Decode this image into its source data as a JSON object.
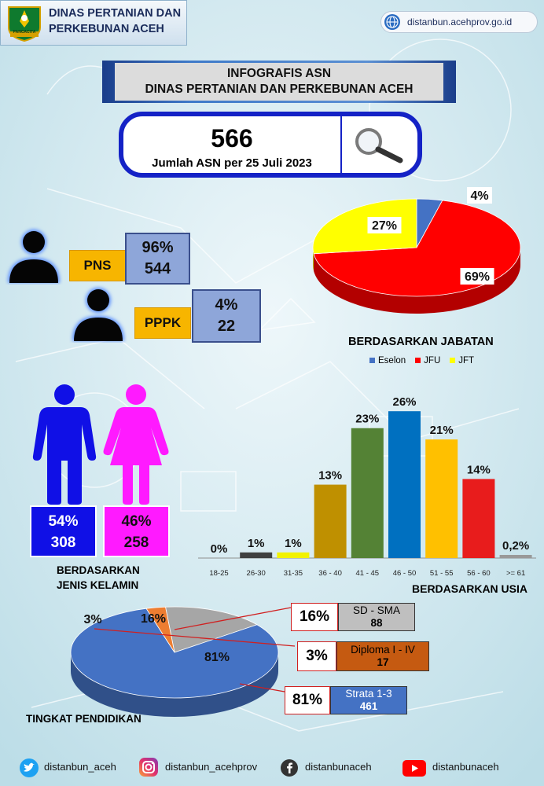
{
  "header": {
    "org_line1": "DINAS PERTANIAN DAN",
    "org_line2": "PERKEBUNAN ACEH",
    "logo_text": "PANCACITA",
    "website": "distanbun.acehprov.go.id"
  },
  "banner": {
    "line1": "INFOGRAFIS  ASN",
    "line2": "DINAS PERTANIAN DAN PERKEBUNAN ACEH"
  },
  "total": {
    "value": "566",
    "label": "Jumlah ASN per 25 Juli 2023"
  },
  "status": {
    "pns": {
      "label": "PNS",
      "percent": "96%",
      "count": "544"
    },
    "pppk": {
      "label": "PPPK",
      "percent": "4%",
      "count": "22"
    }
  },
  "gender": {
    "title_line1": "BERDASARKAN",
    "title_line2": "JENIS KELAMIN",
    "male": {
      "percent": "54%",
      "count": "308",
      "color": "#1010e6"
    },
    "female": {
      "percent": "46%",
      "count": "258",
      "color": "#ff1aff"
    }
  },
  "footer": {
    "twitter": "distanbun_aceh",
    "instagram": "distanbun_acehprov",
    "facebook": "distanbunaceh",
    "youtube": "distanbunaceh"
  },
  "chart_data": [
    {
      "type": "pie",
      "title": "BERDASARKAN JABATAN",
      "legend_position": "bottom",
      "categories": [
        "Eselon",
        "JFU",
        "JFT"
      ],
      "values": [
        4,
        69,
        27
      ],
      "labels": [
        "4%",
        "69%",
        "27%"
      ],
      "colors": [
        "#4472c4",
        "#ff0000",
        "#ffff00"
      ]
    },
    {
      "type": "bar",
      "title": "BERDASARKAN USIA",
      "categories": [
        "18-25",
        "26-30",
        "31-35",
        "36 - 40",
        "41 - 45",
        "46 - 50",
        "51 - 55",
        "56 - 60",
        ">= 61"
      ],
      "values": [
        0,
        1,
        1,
        13,
        23,
        26,
        21,
        14,
        0.2
      ],
      "labels": [
        "0%",
        "1%",
        "1%",
        "13%",
        "23%",
        "26%",
        "21%",
        "14%",
        "0,2%"
      ],
      "colors": [
        "#666666",
        "#404040",
        "#f2f200",
        "#bf9000",
        "#548235",
        "#0070c0",
        "#ffc000",
        "#e81c1c",
        "#999999"
      ],
      "ylim": [
        0,
        27
      ]
    },
    {
      "type": "pie",
      "title": "TINGKAT PENDIDIKAN",
      "categories": [
        "SD - SMA",
        "Diploma I - IV",
        "Strata 1-3"
      ],
      "values": [
        16,
        3,
        81
      ],
      "counts": [
        "88",
        "17",
        "461"
      ],
      "labels": [
        "16%",
        "3%",
        "81%"
      ],
      "colors": [
        "#a6a6a6",
        "#ed7d31",
        "#4472c4"
      ]
    }
  ]
}
